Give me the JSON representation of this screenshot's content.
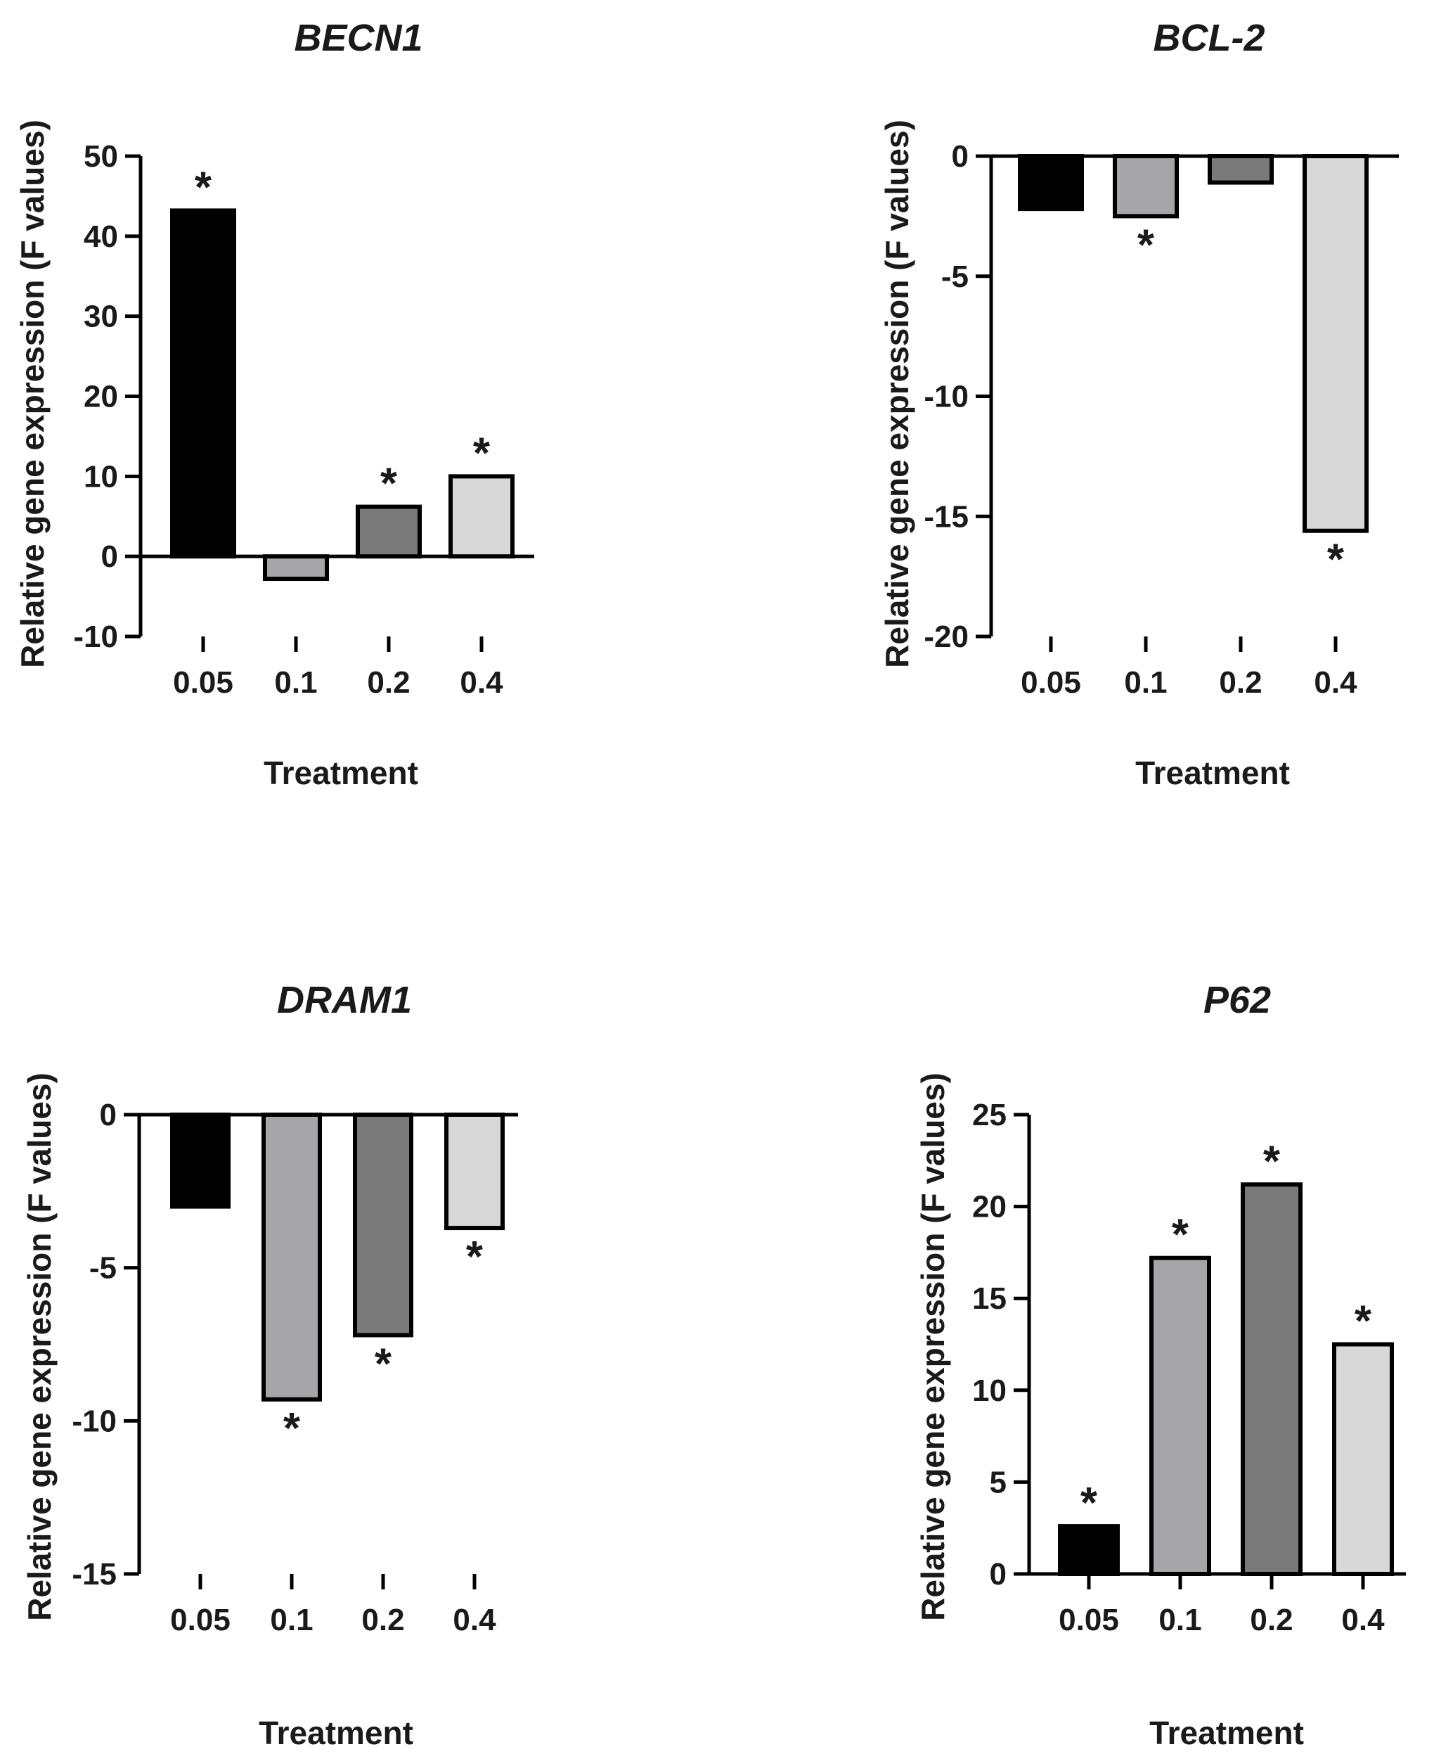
{
  "colors": [
    "#000000",
    "#a6a6a8",
    "#7a7a7a",
    "#d8d8d8"
  ],
  "chart_data": [
    {
      "type": "bar",
      "title": "BECN1",
      "categories": [
        "0.05",
        "0.1",
        "0.2",
        "0.4"
      ],
      "values": [
        43.2,
        -2.8,
        6.2,
        10.0
      ],
      "significant": [
        true,
        false,
        true,
        true
      ],
      "ylim": [
        -10,
        50
      ],
      "yticks": [
        -10,
        0,
        10,
        20,
        30,
        40,
        50
      ],
      "xlabel": "Treatment",
      "ylabel": "Relative gene expression (F values)"
    },
    {
      "type": "bar",
      "title": "BCL-2",
      "categories": [
        "0.05",
        "0.1",
        "0.2",
        "0.4"
      ],
      "values": [
        -2.2,
        -2.5,
        -1.1,
        -15.6
      ],
      "significant": [
        false,
        true,
        false,
        true
      ],
      "ylim": [
        -20,
        0
      ],
      "yticks": [
        -20,
        -15,
        -10,
        -5,
        0
      ],
      "xlabel": "Treatment",
      "ylabel": "Relative gene expression (F values)"
    },
    {
      "type": "bar",
      "title": "DRAM1",
      "categories": [
        "0.05",
        "0.1",
        "0.2",
        "0.4"
      ],
      "values": [
        -3.0,
        -9.3,
        -7.2,
        -3.7
      ],
      "significant": [
        false,
        true,
        true,
        true
      ],
      "ylim": [
        -15,
        0
      ],
      "yticks": [
        -15,
        -10,
        -5,
        0
      ],
      "xlabel": "Treatment",
      "ylabel": "Relative gene expression (F values)"
    },
    {
      "type": "bar",
      "title": "P62",
      "categories": [
        "0.05",
        "0.1",
        "0.2",
        "0.4"
      ],
      "values": [
        2.6,
        17.2,
        21.2,
        12.5
      ],
      "significant": [
        true,
        true,
        true,
        true
      ],
      "ylim": [
        0,
        25
      ],
      "yticks": [
        0,
        5,
        10,
        15,
        20,
        25
      ],
      "xlabel": "Treatment",
      "ylabel": "Relative gene expression (F values)"
    }
  ]
}
